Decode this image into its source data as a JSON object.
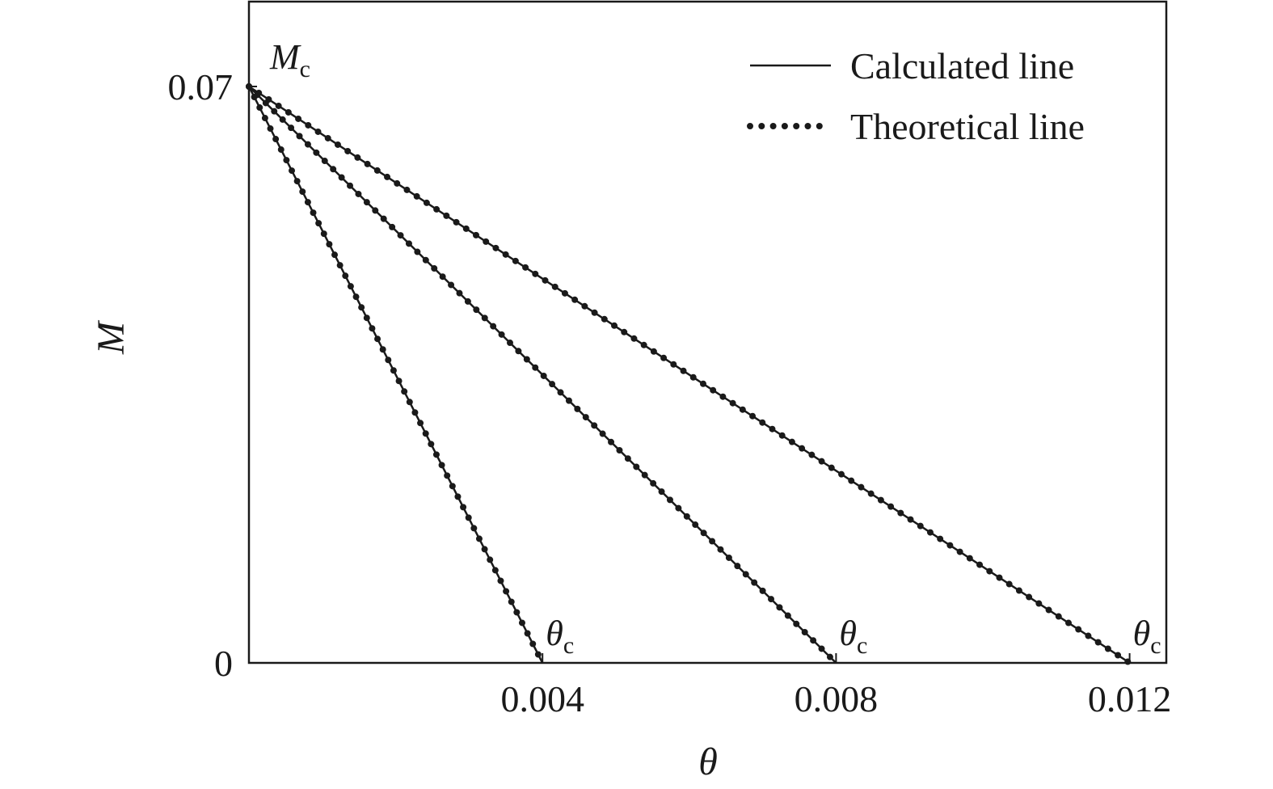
{
  "chart_data": {
    "type": "line",
    "xlabel": "θ",
    "ylabel": "M",
    "xlim": [
      0,
      0.0125
    ],
    "ylim": [
      0,
      0.07
    ],
    "x_ticks": [
      {
        "value": 0.004,
        "label": "0.004"
      },
      {
        "value": 0.008,
        "label": "0.008"
      },
      {
        "value": 0.012,
        "label": "0.012"
      }
    ],
    "y_ticks": [
      {
        "value": 0,
        "label": "0"
      },
      {
        "value": 0.07,
        "label": "0.07"
      }
    ],
    "grid": false,
    "legend": {
      "placement": "top-right",
      "entries": [
        {
          "label": "Calculated line",
          "style": "solid"
        },
        {
          "label": "Theoretical line",
          "style": "dotted"
        }
      ]
    },
    "series": [
      {
        "name": "Calculated line",
        "style": "solid",
        "x": [
          0,
          0.004
        ],
        "y": [
          0.07,
          0
        ]
      },
      {
        "name": "Theoretical line",
        "style": "dotted",
        "x": [
          0,
          0.004
        ],
        "y": [
          0.07,
          0
        ]
      },
      {
        "name": "Calculated line",
        "style": "solid",
        "x": [
          0,
          0.008
        ],
        "y": [
          0.07,
          0
        ]
      },
      {
        "name": "Theoretical line",
        "style": "dotted",
        "x": [
          0,
          0.008
        ],
        "y": [
          0.07,
          0
        ]
      },
      {
        "name": "Calculated line",
        "style": "solid",
        "x": [
          0,
          0.012
        ],
        "y": [
          0.07,
          0
        ]
      },
      {
        "name": "Theoretical line",
        "style": "dotted",
        "x": [
          0,
          0.012
        ],
        "y": [
          0.07,
          0
        ]
      }
    ],
    "annotations": [
      {
        "main": "M",
        "sub": "c",
        "x": 0,
        "y": 0.07
      },
      {
        "main": "θ",
        "sub": "c",
        "x": 0.004,
        "y": 0
      },
      {
        "main": "θ",
        "sub": "c",
        "x": 0.008,
        "y": 0
      },
      {
        "main": "θ",
        "sub": "c",
        "x": 0.012,
        "y": 0
      }
    ]
  },
  "colors": {
    "line": "#1a1a1a",
    "background": "#ffffff"
  }
}
